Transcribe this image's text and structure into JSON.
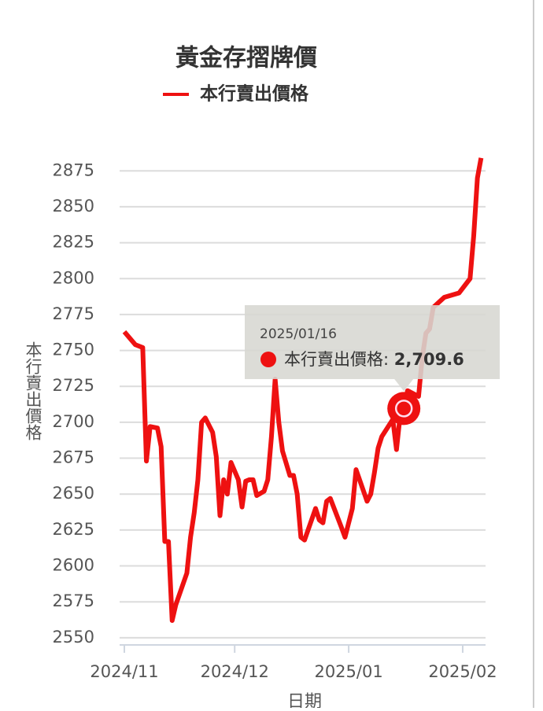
{
  "chart_data": {
    "type": "line",
    "title": "黃金存摺牌價",
    "x_label": "日期",
    "y_label": "本行賣出價格",
    "x": [
      "2024/11/01",
      "2024/11/04",
      "2024/11/06",
      "2024/11/07",
      "2024/11/08",
      "2024/11/10",
      "2024/11/11",
      "2024/11/12",
      "2024/11/13",
      "2024/11/14",
      "2024/11/15",
      "2024/11/18",
      "2024/11/19",
      "2024/11/20",
      "2024/11/21",
      "2024/11/22",
      "2024/11/23",
      "2024/11/25",
      "2024/11/26",
      "2024/11/27",
      "2024/11/28",
      "2024/11/29",
      "2024/11/30",
      "2024/12/02",
      "2024/12/03",
      "2024/12/04",
      "2024/12/05",
      "2024/12/06",
      "2024/12/07",
      "2024/12/09",
      "2024/12/10",
      "2024/12/11",
      "2024/12/12",
      "2024/12/13",
      "2024/12/14",
      "2024/12/16",
      "2024/12/17",
      "2024/12/18",
      "2024/12/19",
      "2024/12/20",
      "2024/12/23",
      "2024/12/24",
      "2024/12/25",
      "2024/12/26",
      "2024/12/27",
      "2024/12/30",
      "2024/12/31",
      "2025/01/02",
      "2025/01/03",
      "2025/01/06",
      "2025/01/07",
      "2025/01/08",
      "2025/01/09",
      "2025/01/10",
      "2025/01/13",
      "2025/01/14",
      "2025/01/15",
      "2025/01/16",
      "2025/01/17",
      "2025/01/20",
      "2025/01/21",
      "2025/01/22",
      "2025/01/23",
      "2025/01/24",
      "2025/01/27",
      "2025/01/31",
      "2025/02/03",
      "2025/02/04",
      "2025/02/05",
      "2025/02/06"
    ],
    "series": [
      {
        "name": "本行賣出價格",
        "color": "#ee1111",
        "values": [
          2763,
          2754,
          2752,
          2673,
          2697,
          2696,
          2683,
          2617,
          2617,
          2562,
          2573,
          2595,
          2620,
          2637,
          2660,
          2700,
          2703,
          2693,
          2676,
          2635,
          2660,
          2650,
          2672,
          2660,
          2641,
          2659,
          2660,
          2660,
          2649,
          2652,
          2660,
          2690,
          2730,
          2700,
          2680,
          2663,
          2663,
          2650,
          2620,
          2618,
          2640,
          2632,
          2630,
          2645,
          2647,
          2627,
          2620,
          2640,
          2667,
          2645,
          2650,
          2665,
          2682,
          2690,
          2702,
          2681,
          2705,
          2709.6,
          2722,
          2718,
          2745,
          2762,
          2765,
          2780,
          2787,
          2790,
          2800,
          2830,
          2870,
          2884
        ]
      }
    ],
    "xlim": [
      "2024/11/01",
      "2025/02/07"
    ],
    "xticks": [
      "2024/11",
      "2024/12",
      "2025/01",
      "2025/02"
    ],
    "ylim": [
      2545,
      2885
    ],
    "yticks": [
      2550,
      2575,
      2600,
      2625,
      2650,
      2675,
      2700,
      2725,
      2750,
      2775,
      2800,
      2825,
      2850,
      2875
    ],
    "grid": true,
    "tooltip": {
      "x": "2025/01/16",
      "label": "本行賣出價格:",
      "value_label": "2,709.6",
      "index": 57
    }
  }
}
